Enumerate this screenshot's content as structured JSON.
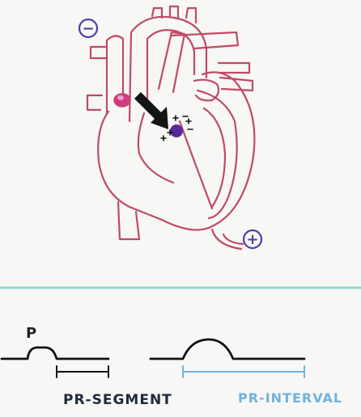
{
  "heart": {
    "negative_marker": "−",
    "positive_marker": "+"
  },
  "ecg": {
    "p_label": "P",
    "pr_segment_label": "PR-SEGMENT",
    "pr_interval_label": "PR-INTERVAL"
  },
  "colors": {
    "heart_outline": "#c04a63",
    "sa_node": "#d23a86",
    "av_node": "#5a2a9c",
    "marker_blue": "#4f3fa0",
    "divider": "#8fd8d0",
    "ecg_line": "#111111",
    "pr_interval": "#6fb3e0",
    "pr_segment_text": "#1f2a3a"
  }
}
